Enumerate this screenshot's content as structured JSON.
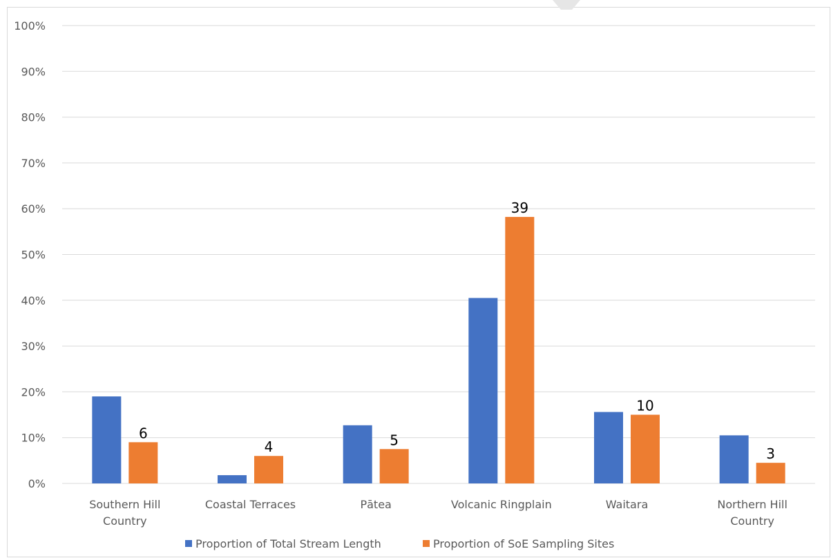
{
  "chart_data": {
    "type": "bar",
    "categories": [
      [
        "Southern Hill",
        "Country"
      ],
      [
        "Coastal Terraces"
      ],
      [
        "Pātea"
      ],
      [
        "Volcanic Ringplain"
      ],
      [
        "Waitara"
      ],
      [
        "Northern Hill",
        "Country"
      ]
    ],
    "series": [
      {
        "name": "Proportion of Total Stream Length",
        "color": "#4472c4",
        "values": [
          19,
          1.8,
          12.7,
          40.5,
          15.6,
          10.5
        ],
        "labels": [
          "",
          "",
          "",
          "",
          "",
          ""
        ]
      },
      {
        "name": "Proportion of SoE Sampling Sites",
        "color": "#ed7d31",
        "values": [
          9,
          6,
          7.5,
          58.2,
          15,
          4.5
        ],
        "labels": [
          "6",
          "4",
          "5",
          "39",
          "10",
          "3"
        ]
      }
    ],
    "y_ticks": [
      "0%",
      "10%",
      "20%",
      "30%",
      "40%",
      "50%",
      "60%",
      "70%",
      "80%",
      "90%",
      "100%"
    ],
    "ylim": [
      0,
      100
    ],
    "grid": true,
    "legend": "bottom",
    "gridline_color": "#d9d9d9"
  }
}
